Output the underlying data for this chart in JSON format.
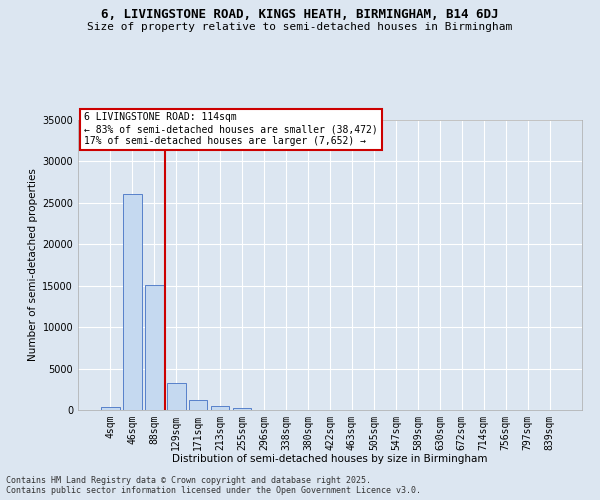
{
  "title_line1": "6, LIVINGSTONE ROAD, KINGS HEATH, BIRMINGHAM, B14 6DJ",
  "title_line2": "Size of property relative to semi-detached houses in Birmingham",
  "xlabel": "Distribution of semi-detached houses by size in Birmingham",
  "ylabel": "Number of semi-detached properties",
  "footer_line1": "Contains HM Land Registry data © Crown copyright and database right 2025.",
  "footer_line2": "Contains public sector information licensed under the Open Government Licence v3.0.",
  "categories": [
    "4sqm",
    "46sqm",
    "88sqm",
    "129sqm",
    "171sqm",
    "213sqm",
    "255sqm",
    "296sqm",
    "338sqm",
    "380sqm",
    "422sqm",
    "463sqm",
    "505sqm",
    "547sqm",
    "589sqm",
    "630sqm",
    "672sqm",
    "714sqm",
    "756sqm",
    "797sqm",
    "839sqm"
  ],
  "values": [
    400,
    26100,
    15100,
    3200,
    1200,
    450,
    200,
    50,
    0,
    0,
    0,
    0,
    0,
    0,
    0,
    0,
    0,
    0,
    0,
    0,
    0
  ],
  "bar_color": "#c5d9f0",
  "bar_edge_color": "#4472c4",
  "annotation_title": "6 LIVINGSTONE ROAD: 114sqm",
  "annotation_line1": "← 83% of semi-detached houses are smaller (38,472)",
  "annotation_line2": "17% of semi-detached houses are larger (7,652) →",
  "annotation_box_color": "#ffffff",
  "annotation_box_edge_color": "#cc0000",
  "vline_color": "#cc0000",
  "vline_x": 2.5,
  "ylim": [
    0,
    35000
  ],
  "yticks": [
    0,
    5000,
    10000,
    15000,
    20000,
    25000,
    30000,
    35000
  ],
  "background_color": "#dce6f1",
  "grid_color": "#ffffff",
  "title_fontsize": 9,
  "subtitle_fontsize": 8,
  "axis_label_fontsize": 7.5,
  "tick_fontsize": 7,
  "annotation_fontsize": 7,
  "footer_fontsize": 6
}
